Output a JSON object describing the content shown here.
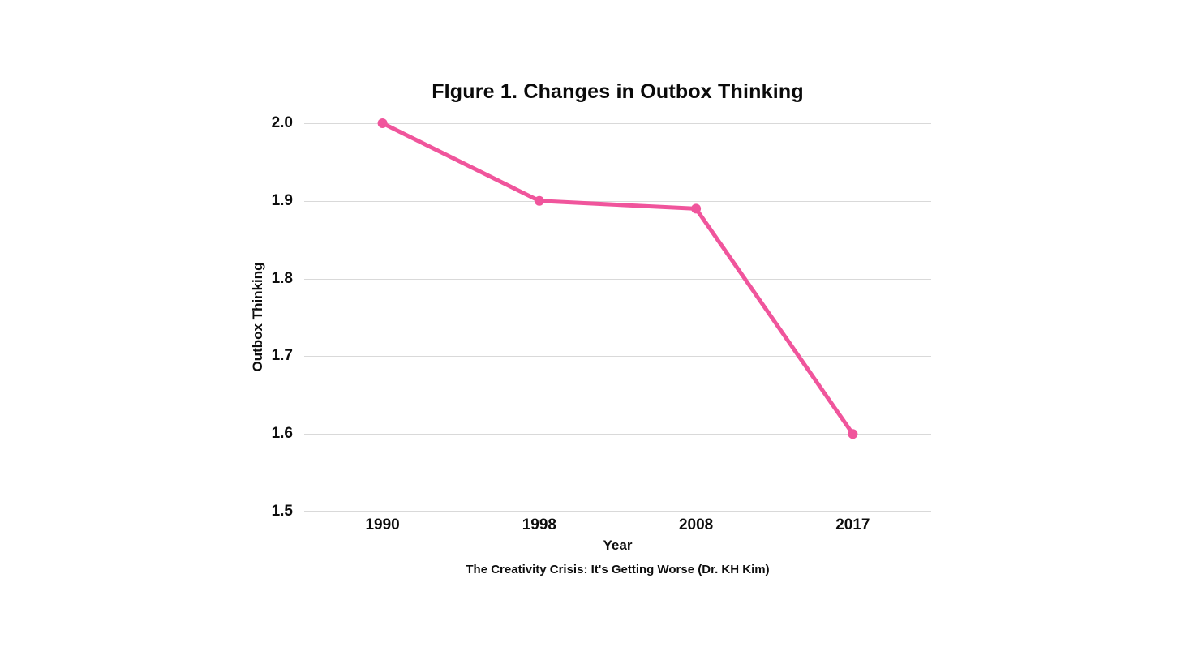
{
  "header": {
    "title": "FIgure 1. Changes in Outbox Thinking"
  },
  "chart_data": {
    "type": "line",
    "title": "FIgure 1. Changes in Outbox Thinking",
    "categories": [
      "1990",
      "1998",
      "2008",
      "2017"
    ],
    "series": [
      {
        "name": "Outbox Thinking",
        "values": [
          2.0,
          1.9,
          1.89,
          1.6
        ]
      }
    ],
    "xlabel": "Year",
    "ylabel": "Outbox Thinking",
    "ylim": [
      1.5,
      2.0
    ],
    "yticks": [
      2.0,
      1.9,
      1.8,
      1.7,
      1.6,
      1.5
    ],
    "ytick_labels": [
      "2.0",
      "1.9",
      "1.8",
      "1.7",
      "1.6",
      "1.5"
    ],
    "grid": true,
    "legend": false,
    "marker": "circle",
    "line_color": "#f0559c",
    "caption": "The Creativity Crisis: It's Getting Worse (Dr. KH Kim)"
  },
  "colors": {
    "line": "#f0559c",
    "grid": "#d9d9d9",
    "text": "#0d0d0d",
    "background": "#ffffff"
  }
}
